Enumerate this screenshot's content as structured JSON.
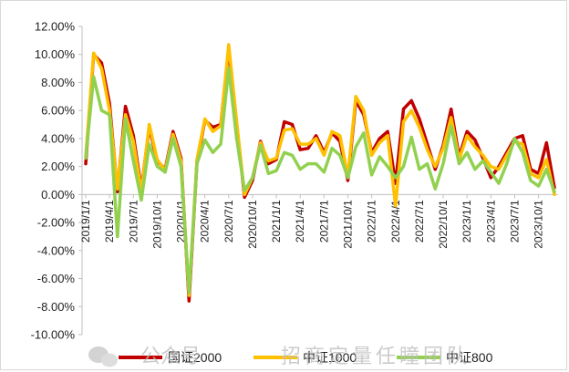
{
  "chart_data": {
    "type": "line",
    "title": "",
    "xlabel": "",
    "ylabel": "",
    "ylim": [
      -0.1,
      0.12
    ],
    "y_ticks": [
      "12.00%",
      "10.00%",
      "8.00%",
      "6.00%",
      "4.00%",
      "2.00%",
      "0.00%",
      "-2.00%",
      "-4.00%",
      "-6.00%",
      "-8.00%",
      "-10.00%"
    ],
    "x_tick_labels": [
      "2019/1/1",
      "2019/4/1",
      "2019/7/1",
      "2019/10/1",
      "2020/1/1",
      "2020/4/1",
      "2020/7/1",
      "2020/10/1",
      "2021/1/1",
      "2021/4/1",
      "2021/7/1",
      "2021/10/1",
      "2022/1/1",
      "2022/4/1",
      "2022/7/1",
      "2022/10/1",
      "2023/1/1",
      "2023/4/1",
      "2023/7/1",
      "2023/10/1"
    ],
    "x": [
      "2019-01",
      "2019-02",
      "2019-03",
      "2019-04",
      "2019-05",
      "2019-06",
      "2019-07",
      "2019-08",
      "2019-09",
      "2019-10",
      "2019-11",
      "2019-12",
      "2020-01",
      "2020-02",
      "2020-03",
      "2020-04",
      "2020-05",
      "2020-06",
      "2020-07",
      "2020-08",
      "2020-09",
      "2020-10",
      "2020-11",
      "2020-12",
      "2021-01",
      "2021-02",
      "2021-03",
      "2021-04",
      "2021-05",
      "2021-06",
      "2021-07",
      "2021-08",
      "2021-09",
      "2021-10",
      "2021-11",
      "2021-12",
      "2022-01",
      "2022-02",
      "2022-03",
      "2022-04",
      "2022-05",
      "2022-06",
      "2022-07",
      "2022-08",
      "2022-09",
      "2022-10",
      "2022-11",
      "2022-12",
      "2023-01",
      "2023-02",
      "2023-03",
      "2023-04",
      "2023-05",
      "2023-06",
      "2023-07",
      "2023-08",
      "2023-09",
      "2023-10",
      "2023-11",
      "2023-12"
    ],
    "series": [
      {
        "name": "国证2000",
        "color": "#c00000",
        "values": [
          0.022,
          0.1,
          0.094,
          0.065,
          0.002,
          0.063,
          0.042,
          0.004,
          0.048,
          0.024,
          0.018,
          0.045,
          0.026,
          -0.076,
          0.023,
          0.053,
          0.048,
          0.05,
          0.104,
          0.051,
          -0.002,
          0.01,
          0.038,
          0.022,
          0.025,
          0.052,
          0.05,
          0.032,
          0.033,
          0.042,
          0.03,
          0.044,
          0.038,
          0.01,
          0.067,
          0.057,
          0.03,
          0.04,
          0.045,
          0.008,
          0.061,
          0.067,
          0.054,
          0.036,
          0.018,
          0.035,
          0.061,
          0.027,
          0.045,
          0.039,
          0.026,
          0.012,
          0.02,
          0.03,
          0.04,
          0.042,
          0.018,
          0.015,
          0.037,
          0.005
        ]
      },
      {
        "name": "中证1000",
        "color": "#ffc000",
        "values": [
          0.027,
          0.101,
          0.09,
          0.06,
          0.004,
          0.057,
          0.038,
          0.002,
          0.05,
          0.025,
          0.017,
          0.043,
          0.024,
          -0.072,
          0.025,
          0.054,
          0.045,
          0.049,
          0.107,
          0.052,
          0.0,
          0.012,
          0.037,
          0.024,
          0.026,
          0.046,
          0.047,
          0.036,
          0.036,
          0.04,
          0.028,
          0.045,
          0.042,
          0.013,
          0.07,
          0.06,
          0.028,
          0.037,
          0.042,
          -0.008,
          0.052,
          0.06,
          0.048,
          0.032,
          0.02,
          0.033,
          0.055,
          0.025,
          0.042,
          0.034,
          0.028,
          0.02,
          0.018,
          0.028,
          0.038,
          0.036,
          0.015,
          0.012,
          0.025,
          0.0
        ]
      },
      {
        "name": "中证800",
        "color": "#92d050",
        "values": [
          0.026,
          0.084,
          0.06,
          0.057,
          -0.03,
          0.054,
          0.024,
          -0.004,
          0.036,
          0.02,
          0.016,
          0.04,
          0.02,
          -0.07,
          0.022,
          0.039,
          0.03,
          0.036,
          0.09,
          0.04,
          0.003,
          0.012,
          0.035,
          0.015,
          0.017,
          0.03,
          0.028,
          0.018,
          0.022,
          0.022,
          0.016,
          0.033,
          0.028,
          0.012,
          0.034,
          0.044,
          0.014,
          0.027,
          0.02,
          0.012,
          0.02,
          0.041,
          0.018,
          0.022,
          0.004,
          0.022,
          0.049,
          0.022,
          0.03,
          0.018,
          0.024,
          0.016,
          0.008,
          0.022,
          0.04,
          0.03,
          0.01,
          0.006,
          0.018,
          0.002
        ]
      }
    ],
    "legend": {
      "position": "bottom"
    },
    "grid": false
  },
  "watermark": {
    "left": "公众号",
    "right": "招商定量任瞳团队"
  }
}
